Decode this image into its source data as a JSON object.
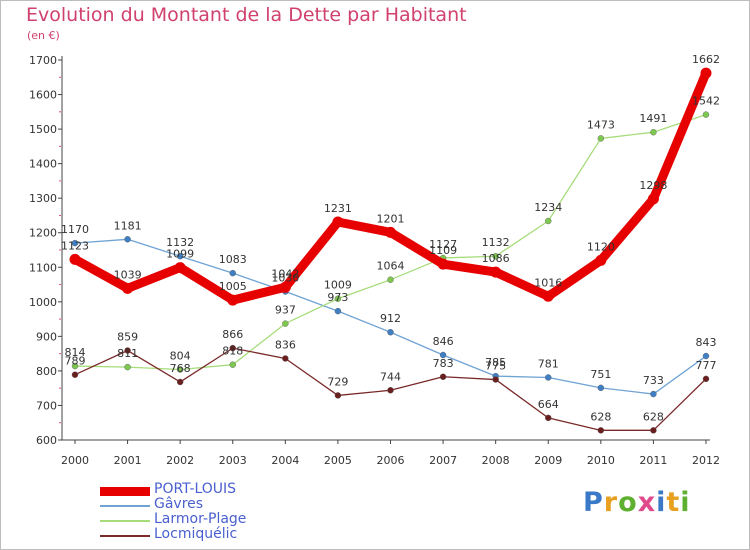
{
  "header": {
    "title": "Evolution du Montant de la Dette par Habitant",
    "unit": "(en €)"
  },
  "brand": {
    "letters": [
      "P",
      "r",
      "o",
      "x",
      "i",
      "t",
      "i"
    ],
    "colors": [
      "#3a78c8",
      "#e8a020",
      "#5fb030",
      "#e04a8c",
      "#3a78c8",
      "#e8a020",
      "#5fb030"
    ]
  },
  "chart_data": {
    "type": "line",
    "title": "Evolution du Montant de la Dette par Habitant",
    "subtitle": "(en €)",
    "xlabel": "",
    "ylabel": "",
    "ylim": [
      600,
      1700
    ],
    "yticks": [
      600,
      700,
      800,
      900,
      1000,
      1100,
      1200,
      1300,
      1400,
      1500,
      1600,
      1700
    ],
    "x": [
      "2000",
      "2001",
      "2002",
      "2003",
      "2004",
      "2005",
      "2006",
      "2007",
      "2008",
      "2009",
      "2010",
      "2011",
      "2012"
    ],
    "grid": false,
    "legend": "bottom-left",
    "series": [
      {
        "name": "PORT-LOUIS",
        "color": "#e60000",
        "markerColor": "#e60000",
        "width": 9,
        "values": [
          1123,
          1039,
          1099,
          1005,
          1042,
          1231,
          1201,
          1109,
          1086,
          1016,
          1120,
          1298,
          1662
        ]
      },
      {
        "name": "Gâvres",
        "color": "#6fa3d4",
        "markerColor": "#3f7fc4",
        "width": 1.3,
        "values": [
          1170,
          1181,
          1132,
          1083,
          1030,
          973,
          912,
          846,
          785,
          781,
          751,
          733,
          843
        ]
      },
      {
        "name": "Larmor-Plage",
        "color": "#a6dc7a",
        "markerColor": "#7ec852",
        "width": 1.3,
        "values": [
          814,
          811,
          804,
          818,
          937,
          1009,
          1064,
          1127,
          1132,
          1234,
          1473,
          1491,
          1542
        ]
      },
      {
        "name": "Locmiquélic",
        "color": "#7a2a2a",
        "markerColor": "#6b1e1e",
        "width": 1.3,
        "values": [
          789,
          859,
          768,
          866,
          836,
          729,
          744,
          783,
          775,
          664,
          628,
          628,
          777
        ]
      }
    ]
  }
}
